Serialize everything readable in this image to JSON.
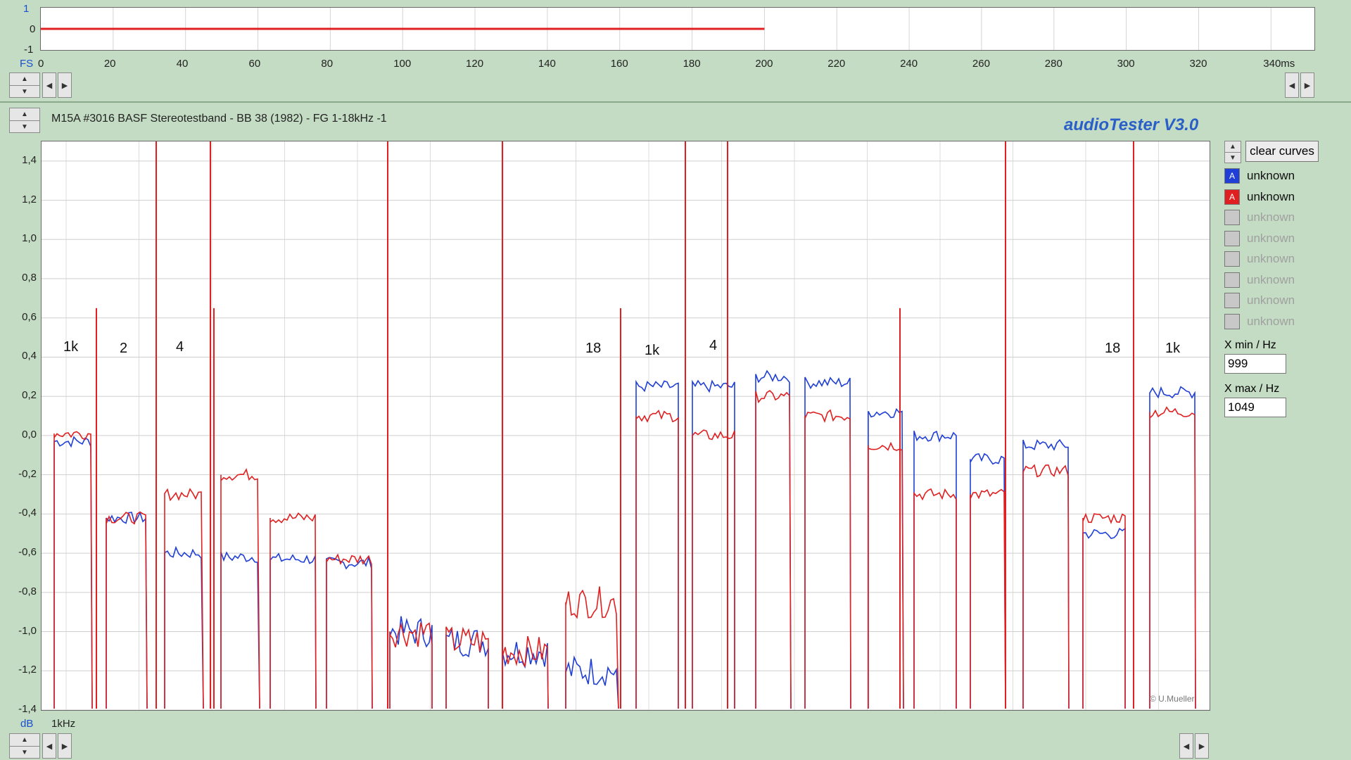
{
  "top_panel": {
    "y_ticks": [
      "1",
      "0",
      "-1"
    ],
    "x_unit_label": "FS",
    "x_ticks": [
      "0",
      "20",
      "40",
      "60",
      "80",
      "100",
      "120",
      "140",
      "160",
      "180",
      "200",
      "220",
      "240",
      "260",
      "280",
      "300",
      "320",
      "340ms"
    ]
  },
  "header": {
    "title": "M15A #3016 BASF Stereotestband - BB 38 (1982) - FG 1-18kHz -1",
    "app_title": "audioTester  V3.0"
  },
  "main_chart": {
    "y_unit_label": "dB",
    "x_label": "1kHz",
    "y_ticks": [
      "1,4",
      "1,2",
      "1,0",
      "0,8",
      "0,6",
      "0,4",
      "0,2",
      "0,0",
      "-0,2",
      "-0,4",
      "-0,6",
      "-0,8",
      "-1,0",
      "-1,2",
      "-1,4"
    ],
    "annotations": [
      "1k",
      "2",
      "4",
      "18",
      "1k",
      "4",
      "18",
      "1k"
    ],
    "copyright": "© U.Mueller"
  },
  "right_panel": {
    "clear_label": "clear curves",
    "channels": [
      {
        "box": "A",
        "label": "unknown",
        "color": "#1f3fd6",
        "enabled": true
      },
      {
        "box": "A",
        "label": "unknown",
        "color": "#e02020",
        "enabled": true
      },
      {
        "box": "",
        "label": "unknown",
        "color": "#c8c8c8",
        "enabled": false
      },
      {
        "box": "",
        "label": "unknown",
        "color": "#c8c8c8",
        "enabled": false
      },
      {
        "box": "",
        "label": "unknown",
        "color": "#c8c8c8",
        "enabled": false
      },
      {
        "box": "",
        "label": "unknown",
        "color": "#c8c8c8",
        "enabled": false
      },
      {
        "box": "",
        "label": "unknown",
        "color": "#c8c8c8",
        "enabled": false
      },
      {
        "box": "",
        "label": "unknown",
        "color": "#c8c8c8",
        "enabled": false
      }
    ],
    "xmin_label": "X min / Hz",
    "xmin_value": "999",
    "xmax_label": "X max / Hz",
    "xmax_value": "1049"
  },
  "chart_data": {
    "type": "line",
    "ylim": [
      -1.4,
      1.5
    ],
    "series": [
      {
        "name": "unknown",
        "color": "#1f3fd6",
        "segments": [
          [
            0.0,
            -0.03
          ],
          [
            -0.42
          ],
          [
            -0.6
          ],
          [
            -0.62
          ],
          [
            -0.63
          ],
          [
            -0.65
          ],
          [
            -1.0
          ],
          [
            -1.05
          ],
          [
            -1.1
          ],
          [
            -1.2
          ],
          [
            0.25
          ],
          [
            0.25
          ],
          [
            0.3
          ],
          [
            0.27
          ],
          [
            0.12
          ],
          [
            0.0
          ],
          [
            -0.12
          ],
          [
            -0.05
          ],
          [
            -0.5
          ],
          [
            0.22
          ]
        ]
      },
      {
        "name": "unknown",
        "color": "#e02020",
        "segments": [
          [
            0.0,
            0.01
          ],
          [
            -0.42
          ],
          [
            -0.3
          ],
          [
            -0.2
          ],
          [
            -0.42
          ],
          [
            -0.63
          ],
          [
            -1.0
          ],
          [
            -1.05
          ],
          [
            -1.1
          ],
          [
            -0.85
          ],
          [
            0.1
          ],
          [
            0.0
          ],
          [
            0.2
          ],
          [
            0.1
          ],
          [
            -0.05
          ],
          [
            -0.3
          ],
          [
            -0.3
          ],
          [
            -0.18
          ],
          [
            -0.42
          ],
          [
            0.12
          ]
        ]
      }
    ]
  }
}
